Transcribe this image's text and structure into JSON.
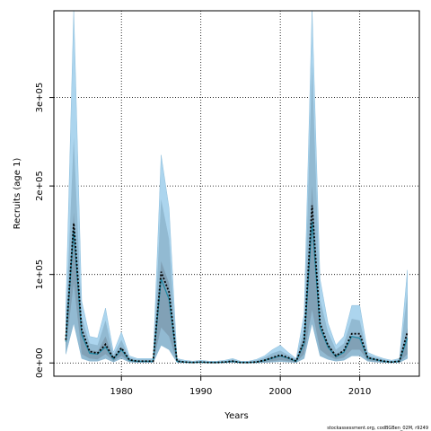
{
  "chart_data": {
    "type": "area",
    "title": "",
    "xlabel": "Years",
    "ylabel": "Recruits (age 1)",
    "xlim": [
      1971.5,
      2017.5
    ],
    "ylim": [
      -15000,
      398000
    ],
    "x_ticks": [
      1980,
      1990,
      2000,
      2010
    ],
    "y_ticks": [
      0,
      100000,
      200000,
      300000
    ],
    "y_tick_labels": [
      "0e+00",
      "1e+05",
      "2e+05",
      "3e+05"
    ],
    "grid": true,
    "colors": {
      "outer_band": "#acd5ee",
      "inner_band": "#8db5cc",
      "core_band": "#7f9fb2",
      "median_line": "#000000",
      "estimate_line": "#1f8aa6"
    },
    "x": [
      1973,
      1974,
      1975,
      1976,
      1977,
      1978,
      1979,
      1980,
      1981,
      1982,
      1983,
      1984,
      1985,
      1986,
      1987,
      1988,
      1989,
      1990,
      1991,
      1992,
      1993,
      1994,
      1995,
      1996,
      1997,
      1998,
      1999,
      2000,
      2001,
      2002,
      2003,
      2004,
      2005,
      2006,
      2007,
      2008,
      2009,
      2010,
      2011,
      2012,
      2013,
      2014,
      2015,
      2016
    ],
    "series": [
      {
        "role": "outer-band",
        "upper": [
          60000,
          400000,
          70000,
          30000,
          28000,
          62000,
          12000,
          35000,
          8000,
          5000,
          5000,
          5000,
          235000,
          175000,
          5000,
          3000,
          2000,
          3000,
          2000,
          2000,
          3000,
          5000,
          2000,
          2000,
          4000,
          8000,
          15000,
          20000,
          12000,
          5000,
          55000,
          400000,
          95000,
          45000,
          20000,
          30000,
          65000,
          65000,
          12000,
          8000,
          5000,
          3000,
          5000,
          105000
        ],
        "lower": [
          10000,
          45000,
          5000,
          2000,
          2000,
          5000,
          1000,
          5000,
          1000,
          500,
          500,
          500,
          20000,
          15000,
          500,
          200,
          100,
          200,
          100,
          100,
          200,
          500,
          100,
          100,
          200,
          500,
          1000,
          1500,
          1000,
          500,
          5000,
          45000,
          8000,
          4000,
          2000,
          3000,
          8000,
          8000,
          2000,
          1000,
          500,
          200,
          500,
          5000
        ]
      },
      {
        "role": "inner-band",
        "upper": [
          45000,
          255000,
          52000,
          22000,
          20000,
          48000,
          9000,
          26000,
          6000,
          4000,
          4000,
          4000,
          185000,
          140000,
          4000,
          2000,
          1500,
          2000,
          1500,
          1500,
          2000,
          4000,
          1500,
          1500,
          3000,
          6000,
          11000,
          14000,
          9000,
          4000,
          40000,
          340000,
          72000,
          35000,
          15000,
          22000,
          50000,
          48000,
          9000,
          6000,
          4000,
          2000,
          4000,
          80000
        ]
      },
      {
        "role": "core-band",
        "upper": [
          30000,
          170000,
          36000,
          15000,
          13000,
          30000,
          6000,
          18000,
          4000,
          2500,
          2500,
          2500,
          115000,
          90000,
          2500,
          1500,
          1000,
          1500,
          1000,
          1000,
          1500,
          2500,
          1000,
          1000,
          2000,
          4000,
          7000,
          9000,
          6000,
          2500,
          30000,
          200000,
          42000,
          22000,
          10000,
          15000,
          30000,
          30000,
          6000,
          4000,
          2500,
          1500,
          2500,
          40000
        ],
        "lower": [
          16000,
          90000,
          10000,
          5000,
          4000,
          10000,
          2000,
          8000,
          1500,
          1000,
          1000,
          1000,
          40000,
          30000,
          1000,
          500,
          300,
          500,
          300,
          300,
          500,
          1000,
          300,
          300,
          500,
          1000,
          2000,
          3000,
          2000,
          1000,
          10000,
          60000,
          15000,
          8000,
          4000,
          6000,
          15000,
          15000,
          3000,
          2000,
          1000,
          500,
          1000,
          10000
        ]
      },
      {
        "role": "median-line",
        "values": [
          26000,
          158000,
          38000,
          13000,
          11000,
          21000,
          5000,
          17000,
          3500,
          2000,
          2000,
          2000,
          103000,
          80000,
          2000,
          1000,
          500,
          1000,
          500,
          500,
          1000,
          2000,
          500,
          500,
          1000,
          3000,
          6000,
          9000,
          6000,
          2000,
          25000,
          178000,
          45000,
          20000,
          8000,
          14000,
          33000,
          33000,
          6000,
          4000,
          2000,
          1000,
          2000,
          35000
        ]
      },
      {
        "role": "estimate-line",
        "values": [
          24000,
          150000,
          32000,
          11000,
          10000,
          18000,
          4500,
          15000,
          3000,
          1800,
          1800,
          1800,
          95000,
          72000,
          1800,
          900,
          450,
          900,
          450,
          450,
          900,
          1800,
          450,
          450,
          900,
          2700,
          5400,
          8000,
          5400,
          1800,
          22000,
          160000,
          40000,
          18000,
          7000,
          12000,
          30000,
          28000,
          5400,
          3600,
          1800,
          900,
          1800,
          28000
        ]
      }
    ]
  },
  "footer": {
    "credit": "stockassessment.org, codBGBen_02M, r9249"
  }
}
